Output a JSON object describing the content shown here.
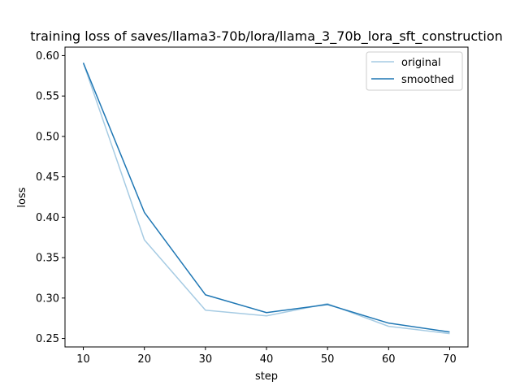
{
  "chart_data": {
    "type": "line",
    "title": "training loss of saves/llama3-70b/lora/llama_3_70b_lora_sft_construction",
    "xlabel": "step",
    "ylabel": "loss",
    "xlim": [
      7,
      73
    ],
    "ylim": [
      0.2395,
      0.6105
    ],
    "xticks": [
      10,
      20,
      30,
      40,
      50,
      60,
      70
    ],
    "yticks": [
      0.25,
      0.3,
      0.35,
      0.4,
      0.45,
      0.5,
      0.55,
      0.6
    ],
    "ytick_labels": [
      "0.25",
      "0.30",
      "0.35",
      "0.40",
      "0.45",
      "0.50",
      "0.55",
      "0.60"
    ],
    "legend_position": "top-right",
    "grid": false,
    "x": [
      10,
      20,
      30,
      40,
      50,
      60,
      70
    ],
    "series": [
      {
        "name": "original",
        "color": "#a6cbe3",
        "values": [
          0.591,
          0.372,
          0.285,
          0.278,
          0.293,
          0.265,
          0.256
        ]
      },
      {
        "name": "smoothed",
        "color": "#1f77b4",
        "values": [
          0.591,
          0.406,
          0.304,
          0.282,
          0.292,
          0.269,
          0.258
        ]
      }
    ]
  }
}
